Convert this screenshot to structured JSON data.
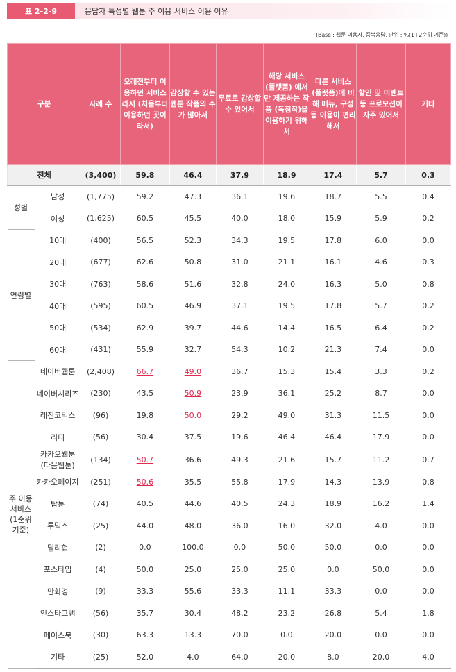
{
  "header": {
    "badge": "표 2-2-9",
    "title": "응답자 특성별 웹툰 주 이용 서비스 이용 이유"
  },
  "note": "(Base : 웹툰 이용자, 중복응답, 단위 : %(1+2순위 기준))",
  "table": {
    "columns": [
      "구분",
      "사례 수",
      "오래전부터 이용하던 서비스라서 (처음부터 이용하던 곳이라서)",
      "감상할 수 있는 웹툰 작품의 수가 많아서",
      "무료로 감상할 수 있어서",
      "해당 서비스 (플랫폼) 에서만 제공하는 작품 (독점작)을 이용하기 위해서",
      "다른 서비스 (플랫폼)에 비해 메뉴, 구성 등 이용이 편리해서",
      "할인 및 이벤트 등 프로모션이 자주 있어서",
      "기타"
    ],
    "total": {
      "label": "전체",
      "n": "(3,400)",
      "values": [
        "59.8",
        "46.4",
        "37.9",
        "18.9",
        "17.4",
        "5.7",
        "0.3"
      ]
    },
    "groups": [
      {
        "label": "성별",
        "rows": [
          {
            "label": "남성",
            "n": "(1,775)",
            "values": [
              "59.2",
              "47.3",
              "36.1",
              "19.6",
              "18.7",
              "5.5",
              "0.4"
            ]
          },
          {
            "label": "여성",
            "n": "(1,625)",
            "values": [
              "60.5",
              "45.5",
              "40.0",
              "18.0",
              "15.9",
              "5.9",
              "0.2"
            ]
          }
        ]
      },
      {
        "label": "연령별",
        "rows": [
          {
            "label": "10대",
            "n": "(400)",
            "values": [
              "56.5",
              "52.3",
              "34.3",
              "19.5",
              "17.8",
              "6.0",
              "0.0"
            ]
          },
          {
            "label": "20대",
            "n": "(677)",
            "values": [
              "62.6",
              "50.8",
              "31.0",
              "21.1",
              "16.1",
              "4.6",
              "0.3"
            ]
          },
          {
            "label": "30대",
            "n": "(763)",
            "values": [
              "58.6",
              "51.6",
              "32.8",
              "24.0",
              "16.3",
              "5.0",
              "0.8"
            ]
          },
          {
            "label": "40대",
            "n": "(595)",
            "values": [
              "60.5",
              "46.9",
              "37.1",
              "19.5",
              "17.8",
              "5.7",
              "0.2"
            ]
          },
          {
            "label": "50대",
            "n": "(534)",
            "values": [
              "62.9",
              "39.7",
              "44.6",
              "14.4",
              "16.5",
              "6.4",
              "0.2"
            ]
          },
          {
            "label": "60대",
            "n": "(431)",
            "values": [
              "55.9",
              "32.7",
              "54.3",
              "10.2",
              "21.3",
              "7.4",
              "0.0"
            ]
          }
        ]
      },
      {
        "label": "주 이용 서비스 (1순위 기준)",
        "rows": [
          {
            "label": "네이버웹툰",
            "n": "(2,408)",
            "values": [
              "66.7",
              "49.0",
              "36.7",
              "15.3",
              "15.4",
              "3.3",
              "0.2"
            ],
            "highlight": [
              0,
              1
            ]
          },
          {
            "label": "네이버시리즈",
            "n": "(230)",
            "values": [
              "43.5",
              "50.9",
              "23.9",
              "36.1",
              "25.2",
              "8.7",
              "0.0"
            ],
            "highlight": [
              1
            ]
          },
          {
            "label": "레진코믹스",
            "n": "(96)",
            "values": [
              "19.8",
              "50.0",
              "29.2",
              "49.0",
              "31.3",
              "11.5",
              "0.0"
            ],
            "highlight": [
              1
            ]
          },
          {
            "label": "리디",
            "n": "(56)",
            "values": [
              "30.4",
              "37.5",
              "19.6",
              "46.4",
              "46.4",
              "17.9",
              "0.0"
            ]
          },
          {
            "label": "카카오웹툰 (다음웹툰)",
            "n": "(134)",
            "values": [
              "50.7",
              "36.6",
              "49.3",
              "21.6",
              "15.7",
              "11.2",
              "0.7"
            ],
            "highlight": [
              0
            ]
          },
          {
            "label": "카카오페이지",
            "n": "(251)",
            "values": [
              "50.6",
              "35.5",
              "55.8",
              "17.9",
              "14.3",
              "13.9",
              "0.8"
            ],
            "highlight": [
              0
            ]
          },
          {
            "label": "탑툰",
            "n": "(74)",
            "values": [
              "40.5",
              "44.6",
              "40.5",
              "24.3",
              "18.9",
              "16.2",
              "1.4"
            ]
          },
          {
            "label": "투믹스",
            "n": "(25)",
            "values": [
              "44.0",
              "48.0",
              "36.0",
              "16.0",
              "32.0",
              "4.0",
              "0.0"
            ]
          },
          {
            "label": "딜리헙",
            "n": "(2)",
            "values": [
              "0.0",
              "100.0",
              "0.0",
              "50.0",
              "50.0",
              "0.0",
              "0.0"
            ]
          },
          {
            "label": "포스타입",
            "n": "(4)",
            "values": [
              "50.0",
              "25.0",
              "25.0",
              "25.0",
              "0.0",
              "50.0",
              "0.0"
            ]
          },
          {
            "label": "만화경",
            "n": "(9)",
            "values": [
              "33.3",
              "55.6",
              "33.3",
              "11.1",
              "33.3",
              "0.0",
              "0.0"
            ]
          },
          {
            "label": "인스타그램",
            "n": "(56)",
            "values": [
              "35.7",
              "30.4",
              "48.2",
              "23.2",
              "26.8",
              "5.4",
              "1.8"
            ]
          },
          {
            "label": "페이스북",
            "n": "(30)",
            "values": [
              "63.3",
              "13.3",
              "70.0",
              "0.0",
              "20.0",
              "0.0",
              "0.0"
            ]
          },
          {
            "label": "기타",
            "n": "(25)",
            "values": [
              "52.0",
              "4.0",
              "64.0",
              "20.0",
              "8.0",
              "20.0",
              "4.0"
            ]
          }
        ]
      }
    ]
  }
}
